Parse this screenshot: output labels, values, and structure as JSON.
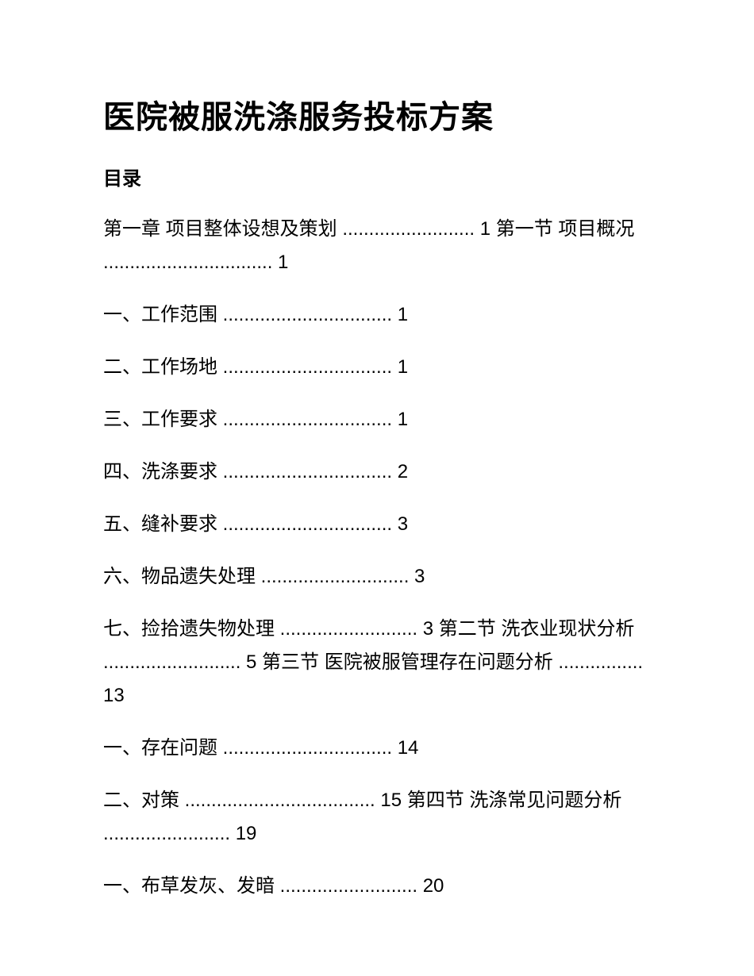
{
  "title": "医院被服洗涤服务投标方案",
  "toc_heading": "目录",
  "entries": {
    "e1": "第一章 项目整体设想及策划 ......................... 1 第一节 项目概况 ................................ 1",
    "e2": "一、工作范围 ................................ 1",
    "e3": "二、工作场地 ................................ 1",
    "e4": "三、工作要求 ................................ 1",
    "e5": "四、洗涤要求 ................................ 2",
    "e6": "五、缝补要求 ................................ 3",
    "e7": "六、物品遗失处理 ............................ 3",
    "e8": "七、捡拾遗失物处理 .......................... 3 第二节 洗衣业现状分析 .......................... 5 第三节 医院被服管理存在问题分析 ................ 13",
    "e9": "一、存在问题 ................................ 14",
    "e10": "二、对策 .................................... 15 第四节 洗涤常见问题分析 ........................ 19",
    "e11": "一、布草发灰、发暗 .......................... 20"
  }
}
